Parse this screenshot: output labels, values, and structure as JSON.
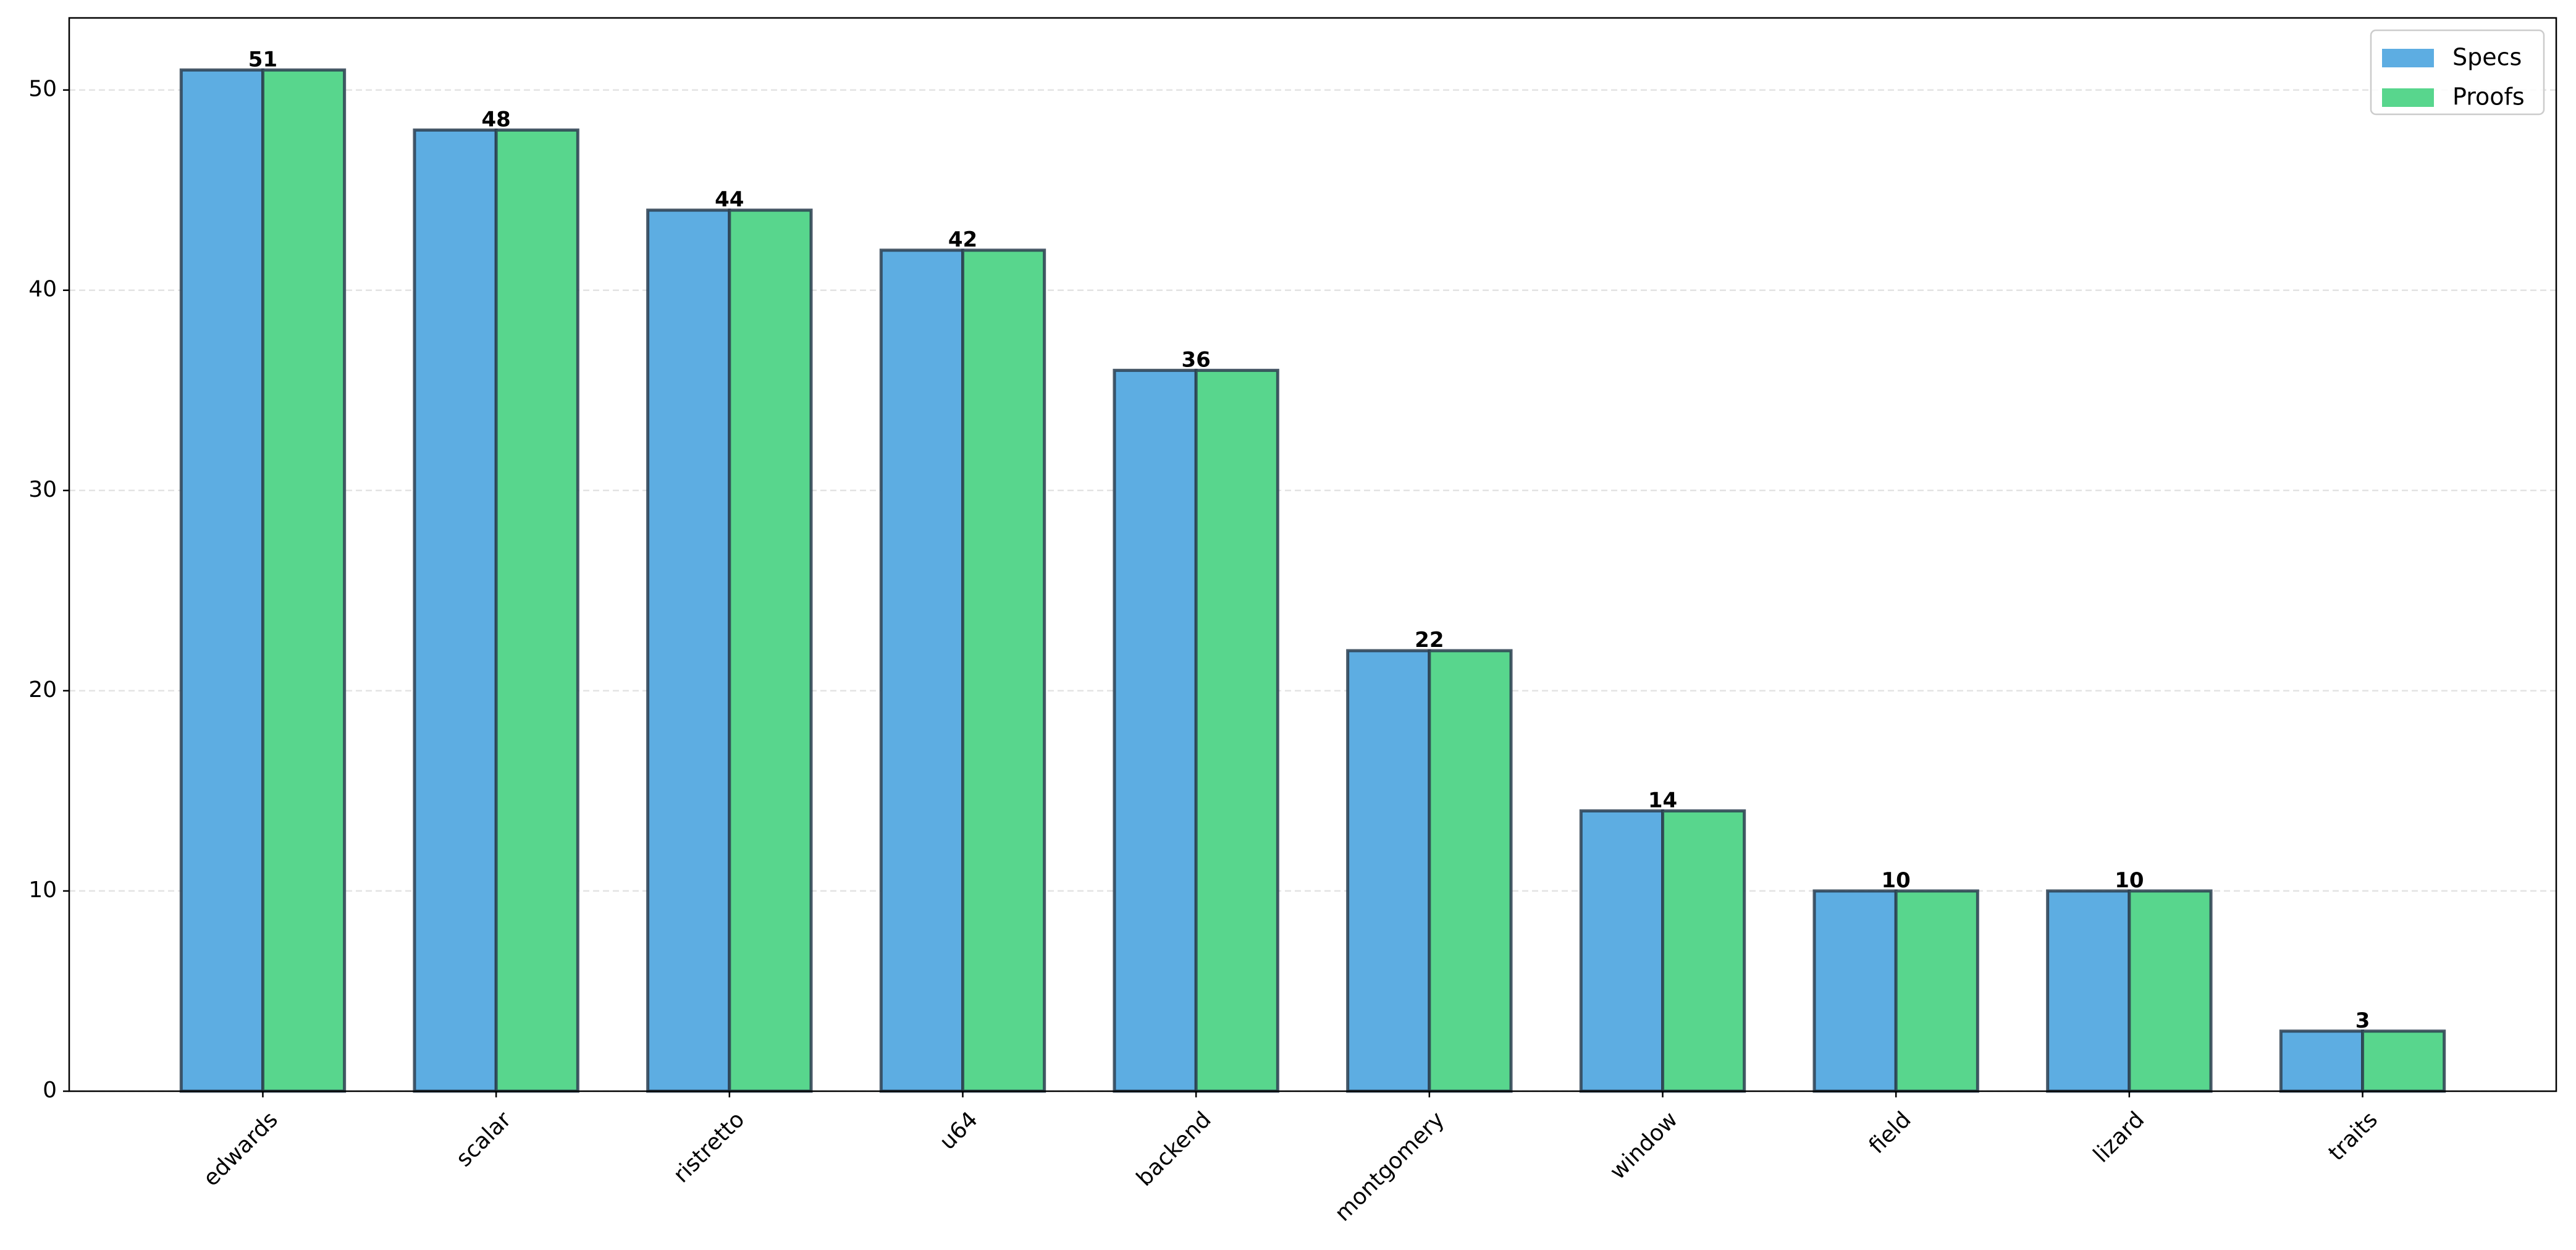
{
  "chart_data": {
    "type": "bar",
    "categories": [
      "edwards",
      "scalar",
      "ristretto",
      "u64",
      "backend",
      "montgomery",
      "window",
      "field",
      "lizard",
      "traits"
    ],
    "series": [
      {
        "name": "Specs",
        "color": "#5dade2",
        "values": [
          51,
          48,
          44,
          42,
          36,
          22,
          14,
          10,
          10,
          3
        ]
      },
      {
        "name": "Proofs",
        "color": "#58d68d",
        "values": [
          51,
          48,
          44,
          42,
          36,
          22,
          14,
          10,
          10,
          3
        ]
      }
    ],
    "ylim": [
      0,
      53.6
    ],
    "yticks": [
      0,
      10,
      20,
      30,
      40,
      50
    ],
    "grid": true,
    "legend": "upper right"
  }
}
